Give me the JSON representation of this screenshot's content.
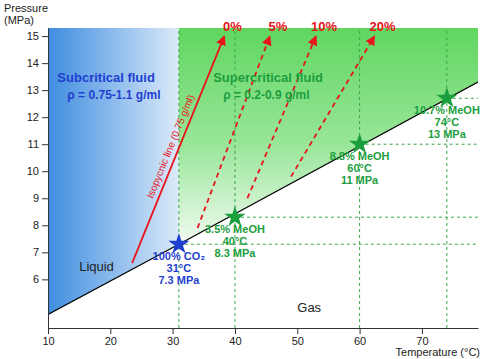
{
  "chart_data": {
    "type": "line",
    "x_label": "Temperature (°C)",
    "y_label": [
      "Pressure",
      "(MPa)"
    ],
    "xlim": [
      10,
      79
    ],
    "ylim": [
      4.2,
      15.3
    ],
    "xticks": [
      10,
      20,
      30,
      40,
      50,
      60,
      70
    ],
    "yticks": [
      6,
      7,
      8,
      9,
      10,
      11,
      12,
      13,
      14,
      15
    ],
    "grid": false,
    "series": [
      {
        "type": "line",
        "color": "#000000",
        "line_style": "solid",
        "x": [
          10,
          31,
          79
        ],
        "values": [
          4.7,
          7.3,
          13.3
        ]
      },
      {
        "name": "0%",
        "label": "Isopycnic line (0.75 g/ml)",
        "type": "line",
        "color": "#e8141b",
        "line_style": "solid",
        "marker": "arrow",
        "x": [
          23.5,
          38.3
        ],
        "values": [
          6.6,
          15.0
        ]
      },
      {
        "name": "5%",
        "type": "line",
        "color": "#e8141b",
        "line_style": "dashed",
        "marker": "arrow",
        "x": [
          34,
          45.6
        ],
        "values": [
          7.9,
          15.0
        ]
      },
      {
        "name": "10%",
        "type": "line",
        "color": "#e8141b",
        "line_style": "dashed",
        "marker": "arrow",
        "x": [
          42,
          53
        ],
        "values": [
          9.0,
          15.0
        ]
      },
      {
        "name": "20%",
        "type": "line",
        "color": "#e8141b",
        "line_style": "dashed",
        "marker": "arrow",
        "x": [
          49,
          62.4
        ],
        "values": [
          9.8,
          15.0
        ]
      },
      {
        "type": "scatter",
        "marker": "star",
        "color": "#1f3fd0",
        "x": [
          31
        ],
        "values": [
          7.3
        ],
        "point_labels": [
          [
            "100% CO₂",
            "31°C",
            "7.3 MPa"
          ]
        ]
      },
      {
        "type": "scatter",
        "marker": "star",
        "color": "#1b9e3e",
        "x": [
          40,
          60,
          74
        ],
        "values": [
          8.3,
          11,
          12.7
        ],
        "point_labels": [
          [
            "3.5% MeOH",
            "40°C",
            "8.3 MPa"
          ],
          [
            "8.8% MeOH",
            "60°C",
            "11 MPa"
          ],
          [
            "10.7% MeOH",
            "74°C",
            "13 MPa"
          ]
        ]
      }
    ],
    "regions": [
      {
        "name": "Subcritical fluid",
        "density": "ρ = 0.75-1.1 g/ml",
        "color": "#1f3fd0",
        "x": 11.5,
        "y": 13.3
      },
      {
        "name": "Supercritical fluid",
        "density": "ρ = 0.2-0.9 g/ml",
        "color": "#1b9e3e",
        "x": 36.5,
        "y": 13.3
      }
    ],
    "annotations": [
      {
        "text": "Liquid",
        "x": 15,
        "y": 6.3
      },
      {
        "text": "Gas",
        "x": 50,
        "y": 4.8
      }
    ]
  }
}
